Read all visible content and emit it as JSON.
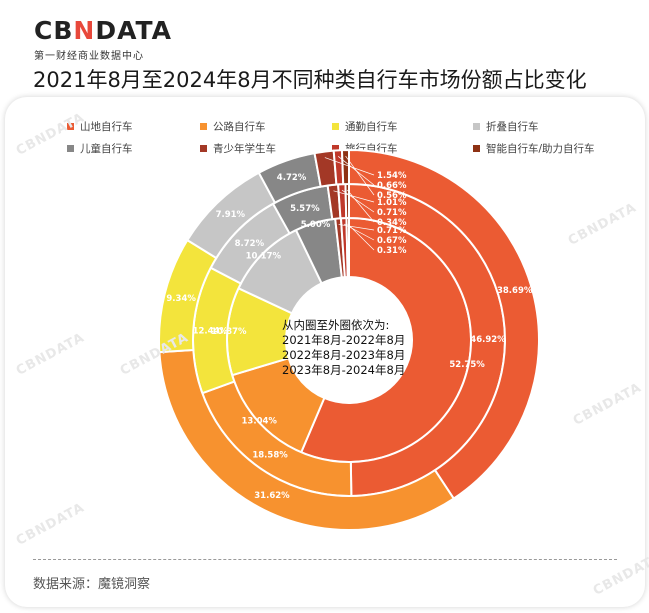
{
  "brand": {
    "logo_left": "CB",
    "logo_mid": "N",
    "logo_right": "DATA",
    "subtitle": "第一财经商业数据中心"
  },
  "title": "2021年8月至2024年8月不同种类自行车市场份额占比变化",
  "watermark": "CBNDATA",
  "center_note": [
    "从内圈至外圈依次为:",
    "2021年8月-2022年8月",
    "2022年8月-2023年8月",
    "2023年8月-2024年8月"
  ],
  "source": "数据来源：魔镜洞察",
  "chart_data": {
    "type": "donut",
    "title": "2021年8月至2024年8月不同种类自行车市场份额占比变化",
    "legend_position": "top",
    "categories": [
      "山地自行车",
      "公路自行车",
      "通勤自行车",
      "折叠自行车",
      "儿童自行车",
      "青少年学生车",
      "旅行自行车",
      "智能自行车/助力自行车"
    ],
    "colors": [
      "#EB5B33",
      "#F7922F",
      "#F3E43C",
      "#C6C6C6",
      "#878787",
      "#A33826",
      "#C0392B",
      "#8E3214"
    ],
    "series": [
      {
        "name": "2021年8月-2022年8月",
        "ring": "inner",
        "values": [
          52.75,
          13.04,
          10.87,
          10.17,
          5.0,
          0.71,
          0.67,
          0.31
        ]
      },
      {
        "name": "2022年8月-2023年8月",
        "ring": "middle",
        "values": [
          46.92,
          18.58,
          12.44,
          8.72,
          5.57,
          1.01,
          0.71,
          0.34
        ]
      },
      {
        "name": "2023年8月-2024年8月",
        "ring": "outer",
        "values": [
          38.69,
          31.62,
          9.34,
          7.91,
          4.72,
          1.54,
          0.66,
          0.56
        ]
      }
    ]
  }
}
